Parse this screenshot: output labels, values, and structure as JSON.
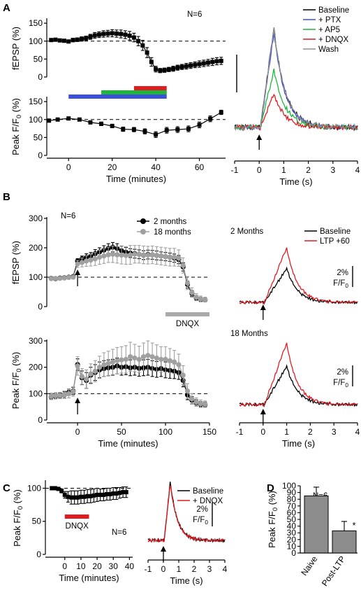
{
  "panel_letters": [
    "A",
    "B",
    "C",
    "D"
  ],
  "chart_data": [
    {
      "id": "A_fepsp",
      "type": "line",
      "ylabel": "fEPSP (%)",
      "annotation": "N=6",
      "xlim": [
        -10,
        72
      ],
      "ylim": [
        0,
        160
      ],
      "yticks": [
        0,
        50,
        100,
        150
      ],
      "reference_line": 100,
      "series": [
        {
          "x": [
            -8,
            -6,
            -4,
            -2,
            0,
            2,
            4,
            6,
            8,
            10,
            12,
            14,
            16,
            18,
            20,
            22,
            24,
            26,
            28,
            30,
            32,
            34,
            36,
            38,
            40,
            42,
            44,
            46,
            48,
            50,
            52,
            54,
            56,
            58,
            60,
            62,
            64,
            66,
            68,
            70
          ],
          "y": [
            103,
            104,
            102,
            101,
            99,
            103,
            104,
            106,
            108,
            112,
            116,
            118,
            120,
            121,
            122,
            121,
            120,
            118,
            115,
            110,
            100,
            88,
            68,
            42,
            22,
            18,
            19,
            21,
            23,
            26,
            28,
            30,
            32,
            34,
            36,
            38,
            40,
            42,
            44,
            45
          ],
          "err": [
            3,
            3,
            3,
            4,
            4,
            5,
            5,
            6,
            6,
            7,
            8,
            8,
            9,
            9,
            10,
            10,
            11,
            11,
            12,
            12,
            13,
            14,
            14,
            12,
            8,
            6,
            6,
            6,
            7,
            7,
            7,
            8,
            8,
            8,
            9,
            9,
            9,
            10,
            10,
            10
          ]
        }
      ]
    },
    {
      "id": "A_peak",
      "type": "line",
      "ylabel": "Peak F/F0 (%)",
      "xlabel": "Time (minutes)",
      "xlim": [
        -10,
        72
      ],
      "ylim": [
        0,
        160
      ],
      "xticks": [
        0,
        20,
        40,
        60
      ],
      "yticks": [
        0,
        50,
        100,
        150
      ],
      "reference_line": 100,
      "drug_bars": [
        {
          "name": "PTX",
          "color": "#3b4fd9",
          "start": 0,
          "end": 45
        },
        {
          "name": "AP5",
          "color": "#1fb53a",
          "start": 15,
          "end": 45
        },
        {
          "name": "DNQX",
          "color": "#e11b22",
          "start": 30,
          "end": 45
        }
      ],
      "series": [
        {
          "x": [
            -9,
            -5,
            0,
            5,
            10,
            15,
            20,
            25,
            30,
            35,
            40,
            45,
            50,
            55,
            60,
            65,
            70
          ],
          "y": [
            97,
            100,
            103,
            100,
            92,
            88,
            82,
            73,
            72,
            67,
            58,
            70,
            72,
            74,
            85,
            102,
            120
          ],
          "err": [
            3,
            3,
            3,
            4,
            4,
            5,
            5,
            6,
            6,
            7,
            8,
            8,
            8,
            8,
            8,
            8,
            6
          ]
        }
      ]
    },
    {
      "id": "A_traces",
      "type": "line",
      "xlabel": "Time (s)",
      "xlim": [
        -1,
        4
      ],
      "xticks": [
        -1,
        0,
        1,
        2,
        3,
        4
      ],
      "stimulus_time": 0,
      "legend": [
        "Baseline",
        "+ PTX",
        "+ AP5",
        "+ DNQX",
        "Wash"
      ],
      "series": [
        {
          "name": "Baseline",
          "color": "#000000",
          "amp": 1.0
        },
        {
          "name": "+ PTX",
          "color": "#3b4fd9",
          "amp": 0.96
        },
        {
          "name": "+ AP5",
          "color": "#1fb53a",
          "amp": 0.58
        },
        {
          "name": "+ DNQX",
          "color": "#e11b22",
          "amp": 0.34
        },
        {
          "name": "Wash",
          "color": "#909090",
          "amp": 1.0
        }
      ]
    },
    {
      "id": "B_fepsp",
      "type": "line",
      "ylabel": "fEPSP (%)",
      "annotation": "N=6",
      "xlim": [
        -35,
        150
      ],
      "ylim": [
        0,
        300
      ],
      "yticks": [
        0,
        100,
        200,
        300
      ],
      "reference_line": 100,
      "stimulus_time": 0,
      "drug_bars": [
        {
          "name": "DNQX",
          "color": "#aaaaaa",
          "start": 100,
          "end": 150
        }
      ],
      "legend": [
        "2 months",
        "18 months"
      ],
      "series": [
        {
          "name": "2 months",
          "color": "#000000",
          "x": [
            -30,
            -25,
            -20,
            -15,
            -10,
            -5,
            0,
            5,
            10,
            15,
            20,
            25,
            30,
            35,
            40,
            45,
            50,
            55,
            60,
            65,
            70,
            75,
            80,
            85,
            90,
            95,
            100,
            105,
            110,
            115,
            120,
            125,
            130,
            135,
            140,
            145
          ],
          "y": [
            96,
            95,
            97,
            98,
            100,
            102,
            155,
            162,
            168,
            172,
            180,
            186,
            192,
            198,
            202,
            198,
            190,
            185,
            182,
            180,
            178,
            175,
            177,
            176,
            174,
            172,
            170,
            168,
            165,
            160,
            135,
            75,
            45,
            30,
            25,
            23
          ],
          "err": [
            4,
            4,
            4,
            5,
            5,
            5,
            8,
            10,
            12,
            12,
            14,
            14,
            15,
            16,
            16,
            16,
            16,
            16,
            15,
            15,
            15,
            15,
            15,
            15,
            15,
            14,
            14,
            14,
            14,
            14,
            14,
            12,
            10,
            8,
            7,
            6
          ]
        },
        {
          "name": "18 months",
          "color": "#a0a0a0",
          "x": [
            -30,
            -25,
            -20,
            -15,
            -10,
            -5,
            0,
            5,
            10,
            15,
            20,
            25,
            30,
            35,
            40,
            45,
            50,
            55,
            60,
            65,
            70,
            75,
            80,
            85,
            90,
            95,
            100,
            105,
            110,
            115,
            120,
            125,
            130,
            135,
            140,
            145
          ],
          "y": [
            95,
            96,
            96,
            97,
            99,
            100,
            145,
            150,
            155,
            158,
            162,
            168,
            172,
            176,
            178,
            176,
            175,
            174,
            176,
            178,
            178,
            176,
            175,
            176,
            174,
            172,
            170,
            168,
            168,
            165,
            140,
            80,
            48,
            32,
            26,
            24
          ],
          "err": [
            5,
            5,
            5,
            5,
            6,
            6,
            12,
            15,
            18,
            20,
            22,
            24,
            25,
            26,
            28,
            28,
            30,
            30,
            32,
            30,
            30,
            30,
            30,
            30,
            30,
            30,
            30,
            30,
            30,
            28,
            26,
            22,
            16,
            12,
            10,
            8
          ]
        }
      ]
    },
    {
      "id": "B_peak",
      "type": "line",
      "ylabel": "Peak F/F0 (%)",
      "xlabel": "Time (minutes)",
      "xlim": [
        -35,
        150
      ],
      "ylim": [
        0,
        300
      ],
      "xticks": [
        0,
        50,
        100,
        150
      ],
      "yticks": [
        0,
        100,
        200,
        300
      ],
      "reference_line": 100,
      "stimulus_time": 0,
      "series": [
        {
          "name": "2 months",
          "color": "#000000",
          "x": [
            -30,
            -25,
            -20,
            -15,
            -10,
            -5,
            0,
            5,
            10,
            15,
            20,
            25,
            30,
            35,
            40,
            45,
            50,
            55,
            60,
            65,
            70,
            75,
            80,
            85,
            90,
            95,
            100,
            105,
            110,
            115,
            120,
            125,
            130,
            135,
            140,
            145
          ],
          "y": [
            88,
            90,
            92,
            95,
            105,
            110,
            210,
            160,
            150,
            170,
            180,
            190,
            195,
            198,
            200,
            205,
            200,
            202,
            198,
            200,
            196,
            198,
            200,
            195,
            192,
            195,
            190,
            188,
            185,
            180,
            150,
            95,
            75,
            65,
            60,
            58
          ],
          "err": [
            10,
            10,
            10,
            12,
            12,
            14,
            22,
            26,
            30,
            30,
            30,
            30,
            30,
            30,
            30,
            30,
            30,
            30,
            30,
            30,
            30,
            30,
            30,
            30,
            30,
            30,
            30,
            30,
            28,
            26,
            24,
            18,
            14,
            12,
            10,
            10
          ]
        },
        {
          "name": "18 months",
          "color": "#a0a0a0",
          "x": [
            -30,
            -25,
            -20,
            -15,
            -10,
            -5,
            0,
            5,
            10,
            15,
            20,
            25,
            30,
            35,
            40,
            45,
            50,
            55,
            60,
            65,
            70,
            75,
            80,
            85,
            90,
            95,
            100,
            105,
            110,
            115,
            120,
            125,
            130,
            135,
            140,
            145
          ],
          "y": [
            90,
            92,
            93,
            96,
            100,
            108,
            205,
            165,
            155,
            175,
            185,
            200,
            210,
            215,
            220,
            225,
            228,
            230,
            240,
            235,
            230,
            240,
            245,
            240,
            235,
            230,
            230,
            225,
            220,
            210,
            170,
            110,
            80,
            68,
            62,
            60
          ],
          "err": [
            12,
            12,
            12,
            14,
            16,
            18,
            35,
            30,
            35,
            38,
            40,
            42,
            45,
            46,
            48,
            50,
            50,
            52,
            55,
            52,
            50,
            52,
            55,
            52,
            50,
            48,
            48,
            46,
            44,
            40,
            36,
            28,
            20,
            16,
            14,
            12
          ]
        }
      ]
    },
    {
      "id": "B_trace_2mo",
      "type": "line",
      "title": "2 Months",
      "legend": [
        "Baseline",
        "LTP +60"
      ],
      "scale_label": [
        "2%",
        "F/F0"
      ],
      "stimulus_time": 0,
      "series": [
        {
          "name": "Baseline",
          "color": "#000000",
          "amp": 0.62
        },
        {
          "name": "LTP +60",
          "color": "#e11b22",
          "amp": 1.0
        }
      ]
    },
    {
      "id": "B_trace_18mo",
      "type": "line",
      "title": "18 Months",
      "xlabel": "Time (s)",
      "xlim": [
        -1,
        4
      ],
      "xticks": [
        -1,
        0,
        1,
        2,
        3,
        4
      ],
      "scale_label": [
        "2%",
        "F/F0"
      ],
      "stimulus_time": 0,
      "series": [
        {
          "name": "Baseline",
          "color": "#000000",
          "amp": 0.62
        },
        {
          "name": "LTP +60",
          "color": "#e11b22",
          "amp": 1.0
        }
      ]
    },
    {
      "id": "C_peak",
      "type": "line",
      "ylabel": "Peak F/F0 (%)",
      "xlabel": "Time (minutes)",
      "annotation": "N=6",
      "xlim": [
        -12,
        42
      ],
      "ylim": [
        0,
        110
      ],
      "xticks": [
        0,
        10,
        20,
        30,
        40
      ],
      "yticks": [
        0,
        50,
        100
      ],
      "reference_line": 100,
      "drug_bars": [
        {
          "name": "DNQX",
          "color": "#e11b22",
          "start": 0,
          "end": 15
        }
      ],
      "series": [
        {
          "x": [
            -8,
            -6,
            -4,
            -2,
            0,
            2,
            4,
            6,
            8,
            10,
            12,
            14,
            16,
            18,
            20,
            22,
            24,
            26,
            28,
            30,
            32,
            34,
            36,
            38
          ],
          "y": [
            100,
            100,
            99,
            96,
            90,
            87,
            86,
            86,
            86,
            87,
            87,
            88,
            88,
            89,
            90,
            90,
            90,
            91,
            91,
            92,
            92,
            93,
            94,
            94
          ],
          "err": [
            2,
            2,
            2,
            3,
            5,
            8,
            10,
            10,
            10,
            10,
            10,
            10,
            10,
            10,
            10,
            9,
            9,
            9,
            9,
            9,
            9,
            8,
            8,
            8
          ]
        }
      ]
    },
    {
      "id": "C_traces",
      "type": "line",
      "xlabel": "Time (s)",
      "xlim": [
        -1,
        4
      ],
      "xticks": [
        -1,
        0,
        1,
        2,
        3,
        4
      ],
      "stimulus_time": 0,
      "legend": [
        "Baseline",
        "+ DNQX"
      ],
      "scale_label": [
        "2%",
        "F/F0"
      ],
      "series": [
        {
          "name": "Baseline",
          "color": "#000000",
          "amp": 1.0
        },
        {
          "name": "+ DNQX",
          "color": "#e11b22",
          "amp": 0.98
        }
      ]
    },
    {
      "id": "D_bar",
      "type": "bar",
      "ylabel": "Peak F/F0 (%)",
      "annotation": "N=6",
      "categories": [
        "Naive",
        "Post-LTP"
      ],
      "values": [
        85,
        33
      ],
      "err": [
        13,
        14
      ],
      "significance": [
        "",
        "*"
      ],
      "ylim": [
        0,
        100
      ],
      "yticks": [
        0,
        10,
        20,
        30,
        40,
        50,
        60,
        70,
        80,
        90,
        100
      ]
    }
  ]
}
